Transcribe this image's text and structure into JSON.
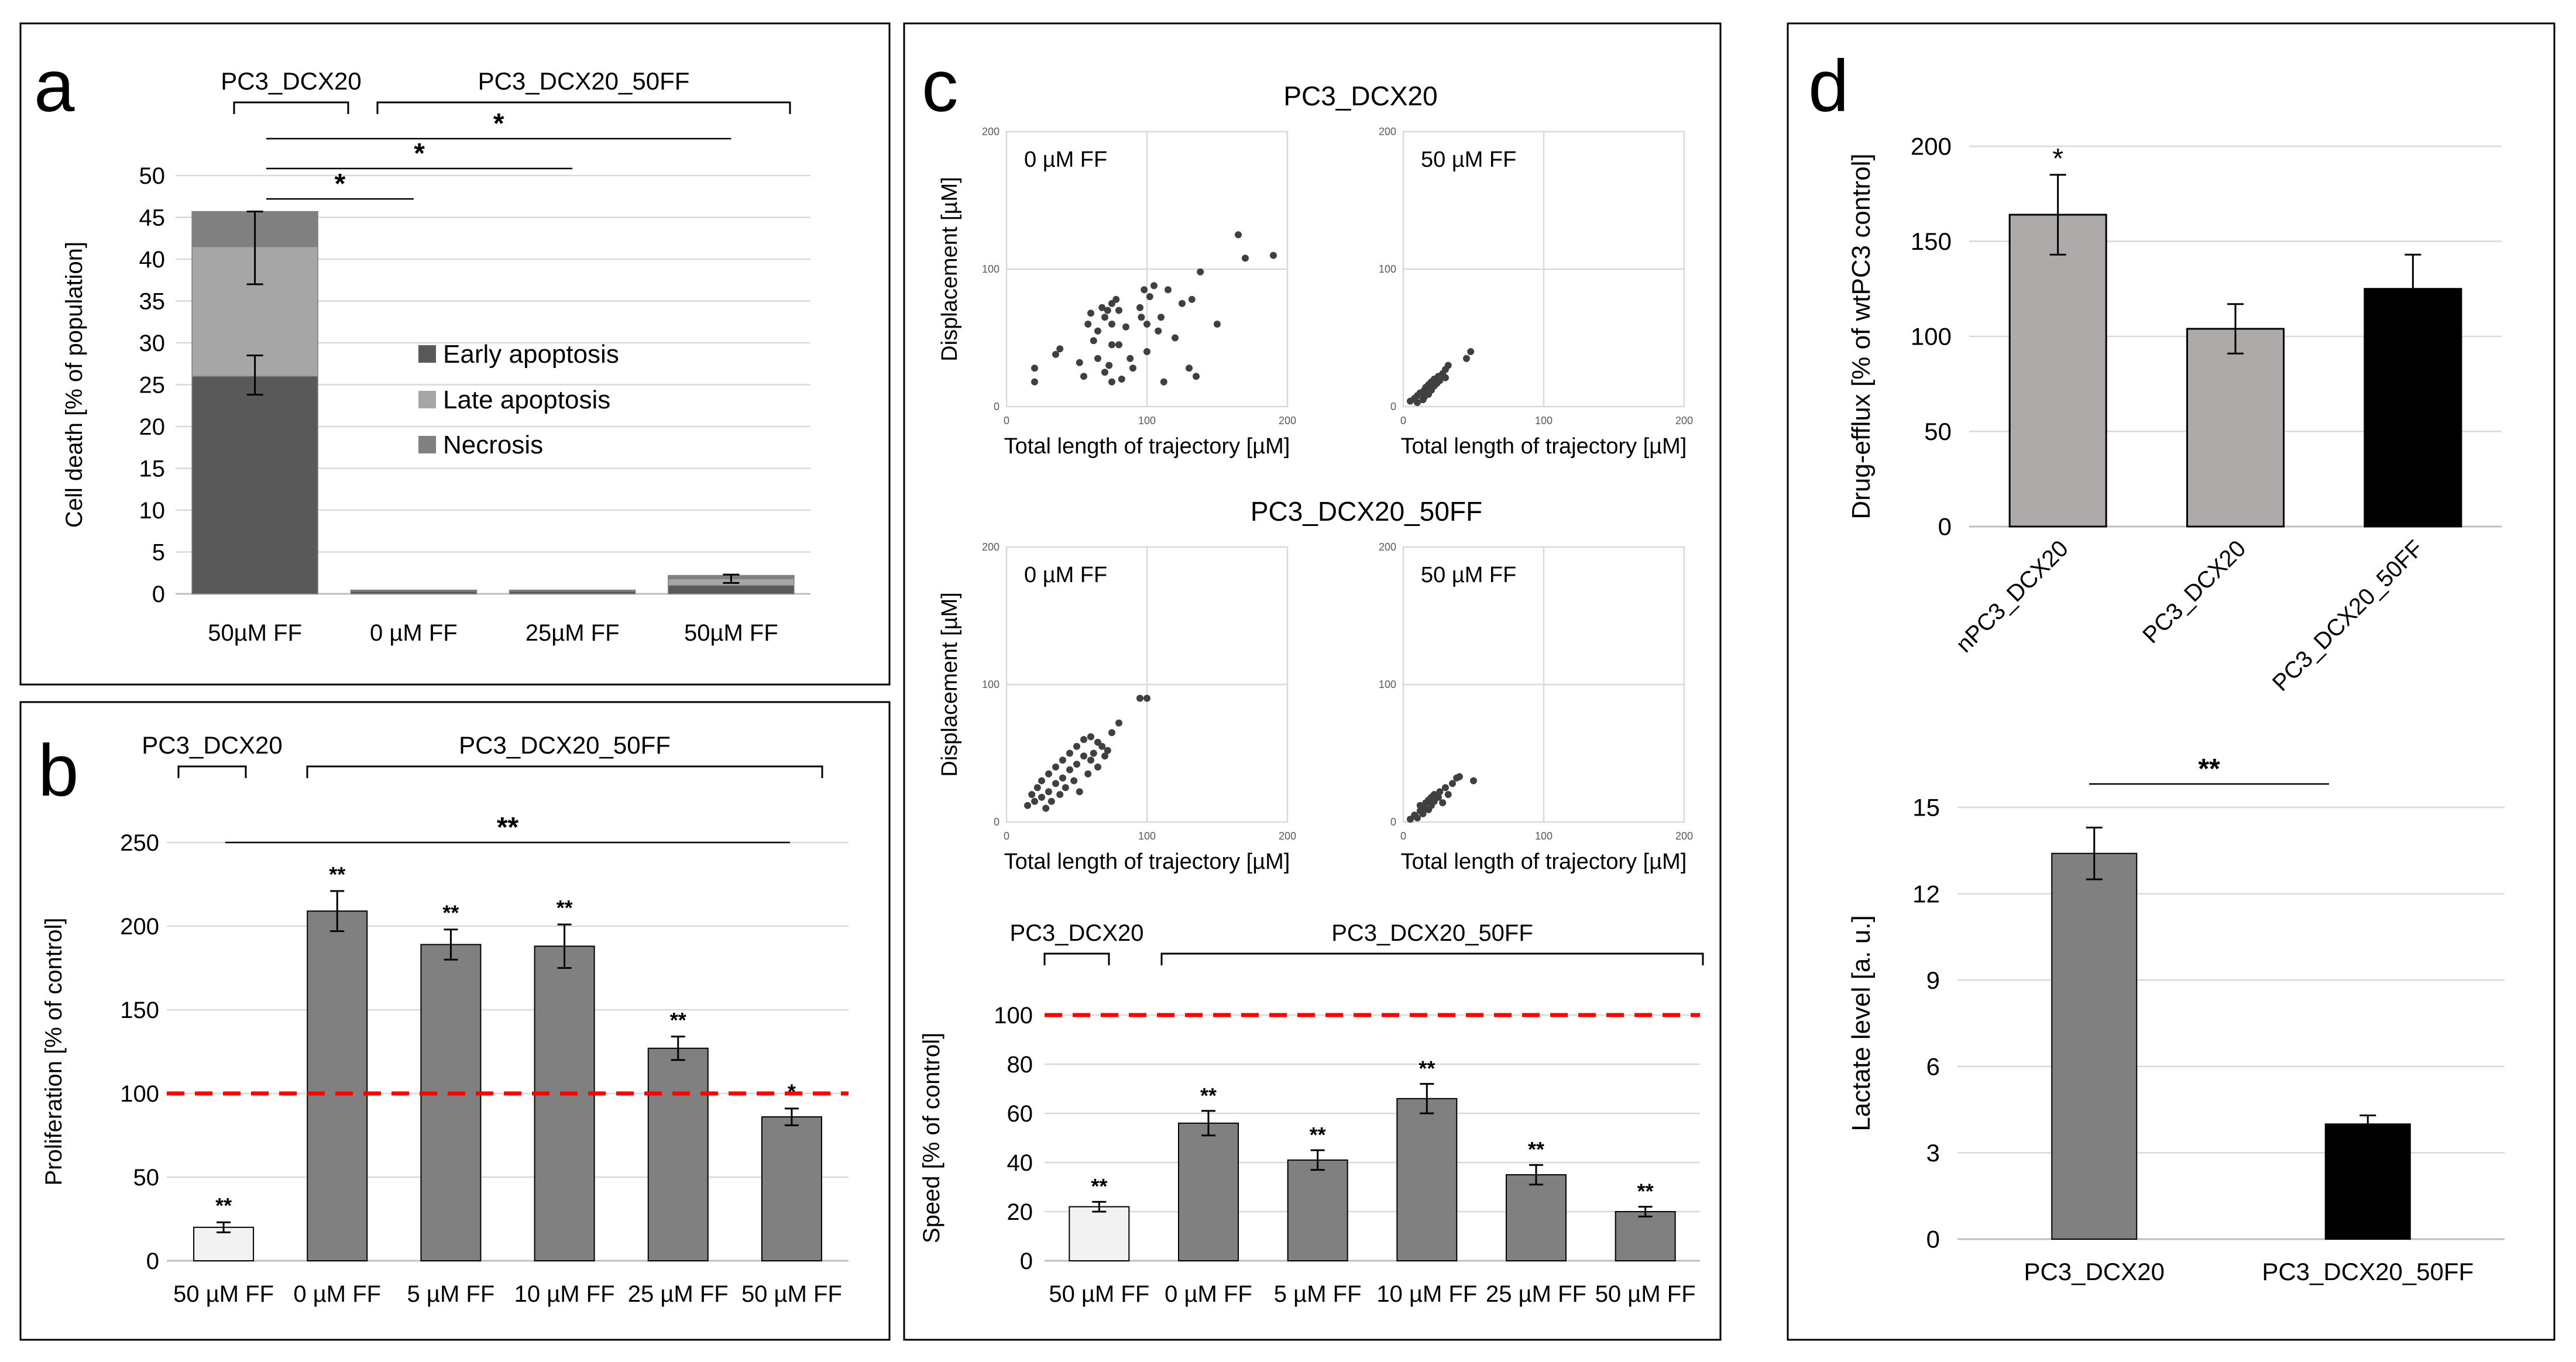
{
  "panel_letters": {
    "a": "a",
    "b": "b",
    "c": "c",
    "d": "d"
  },
  "colors": {
    "dark": "#595959",
    "light": "#a6a6a6",
    "mid": "#808080",
    "bar": "#808080",
    "white_bar": "#f2f2f2",
    "black": "#000000",
    "taupe": "#aeaaaa",
    "red": "#ff0000",
    "grid": "#d9d9d9"
  },
  "chart_data": [
    {
      "id": "a",
      "type": "bar",
      "stacked": true,
      "ylabel": "Cell death [% of population]",
      "ylim": [
        0,
        50
      ],
      "yticks": [
        0,
        5,
        10,
        15,
        20,
        25,
        30,
        35,
        40,
        45,
        50
      ],
      "categories": [
        "50µM FF",
        "0 µM FF",
        "25µM FF",
        "50µM FF"
      ],
      "series": [
        {
          "name": "Early apoptosis",
          "values": [
            26,
            0.3,
            0.3,
            1.0
          ]
        },
        {
          "name": "Late apoptosis",
          "values": [
            15.5,
            0.1,
            0.1,
            0.8
          ]
        },
        {
          "name": "Necrosis",
          "values": [
            4.2,
            0.05,
            0.05,
            0.4
          ]
        }
      ],
      "group_labels": [
        {
          "text": "PC3_DCX20",
          "from": 0,
          "to": 0
        },
        {
          "text": "PC3_DCX20_50FF",
          "from": 1,
          "to": 3
        }
      ],
      "significance": [
        {
          "from": 0,
          "to": 1,
          "label": "*"
        },
        {
          "from": 0,
          "to": 2,
          "label": "*"
        },
        {
          "from": 0,
          "to": 3,
          "label": "*"
        }
      ]
    },
    {
      "id": "b",
      "type": "bar",
      "ylabel": "Proliferation [% of control]",
      "ylim": [
        0,
        250
      ],
      "yticks": [
        0,
        50,
        100,
        150,
        200,
        250
      ],
      "categories": [
        "50 µM FF",
        "0 µM FF",
        "5 µM FF",
        "10 µM FF",
        "25 µM FF",
        "50 µM FF"
      ],
      "values": [
        20,
        209,
        189,
        188,
        127,
        86
      ],
      "errors": [
        3,
        12,
        9,
        13,
        7,
        5
      ],
      "labels": [
        "**",
        "**",
        "**",
        "**",
        "**",
        "*"
      ],
      "reference_line": 100,
      "group_labels": [
        {
          "text": "PC3_DCX20",
          "from": 0,
          "to": 0
        },
        {
          "text": "PC3_DCX20_50FF",
          "from": 1,
          "to": 5
        }
      ],
      "significance": [
        {
          "from": 0,
          "to": 5,
          "label": "**"
        }
      ]
    },
    {
      "id": "c_scatter_1",
      "type": "scatter",
      "subtitle": "PC3_DCX20",
      "annotation": "0 µM FF",
      "xlabel": "Total length of trajectory [µM]",
      "ylabel": "Displacement [µM]",
      "xlim": [
        0,
        200
      ],
      "ylim": [
        0,
        200
      ],
      "xticks": [
        "0",
        "100",
        "200"
      ],
      "yticks": [
        "0",
        "100",
        "200"
      ],
      "x": [
        20,
        20,
        35,
        38,
        52,
        55,
        58,
        60,
        62,
        65,
        65,
        68,
        70,
        70,
        72,
        73,
        75,
        75,
        75,
        75,
        78,
        80,
        80,
        82,
        85,
        88,
        90,
        95,
        96,
        98,
        100,
        100,
        102,
        105,
        108,
        110,
        112,
        115,
        120,
        125,
        130,
        132,
        135,
        138,
        150,
        165,
        170,
        190
      ],
      "y": [
        18,
        28,
        38,
        42,
        32,
        22,
        60,
        68,
        48,
        55,
        35,
        72,
        65,
        25,
        70,
        30,
        45,
        75,
        18,
        60,
        78,
        70,
        45,
        20,
        58,
        35,
        28,
        72,
        65,
        85,
        40,
        60,
        80,
        88,
        55,
        65,
        18,
        85,
        50,
        75,
        28,
        78,
        22,
        98,
        60,
        125,
        108,
        110
      ]
    },
    {
      "id": "c_scatter_2",
      "type": "scatter",
      "annotation": "50 µM FF",
      "xlabel": "Total length of trajectory [µM]",
      "ylabel": "",
      "xlim": [
        0,
        200
      ],
      "ylim": [
        0,
        200
      ],
      "xticks": [
        "0",
        "100",
        "200"
      ],
      "yticks": [
        "0",
        "100",
        "200"
      ],
      "x": [
        5,
        8,
        10,
        10,
        12,
        14,
        15,
        15,
        16,
        18,
        18,
        20,
        20,
        22,
        22,
        24,
        25,
        26,
        28,
        30,
        30,
        32,
        45,
        48
      ],
      "y": [
        4,
        6,
        3,
        8,
        10,
        5,
        12,
        7,
        14,
        9,
        16,
        12,
        18,
        15,
        20,
        17,
        22,
        19,
        24,
        21,
        27,
        30,
        35,
        40
      ]
    },
    {
      "id": "c_scatter_3",
      "type": "scatter",
      "subtitle": "PC3_DCX20_50FF",
      "annotation": "0 µM FF",
      "xlabel": "Total length of trajectory [µM]",
      "ylabel": "Displacement [µM]",
      "xlim": [
        0,
        200
      ],
      "ylim": [
        0,
        200
      ],
      "xticks": [
        "0",
        "100",
        "200"
      ],
      "yticks": [
        "0",
        "100",
        "200"
      ],
      "x": [
        15,
        18,
        20,
        22,
        25,
        25,
        28,
        30,
        30,
        32,
        35,
        35,
        38,
        40,
        40,
        42,
        45,
        45,
        48,
        50,
        50,
        52,
        55,
        55,
        58,
        60,
        60,
        62,
        65,
        65,
        68,
        70,
        72,
        75,
        80,
        95,
        100
      ],
      "y": [
        12,
        20,
        15,
        25,
        18,
        30,
        10,
        22,
        35,
        15,
        28,
        40,
        20,
        32,
        45,
        25,
        38,
        50,
        30,
        42,
        55,
        22,
        48,
        60,
        35,
        45,
        62,
        50,
        40,
        58,
        55,
        48,
        52,
        65,
        72,
        90,
        90
      ]
    },
    {
      "id": "c_scatter_4",
      "type": "scatter",
      "annotation": "50 µM FF",
      "xlabel": "Total length of trajectory [µM]",
      "ylabel": "",
      "xlim": [
        0,
        200
      ],
      "ylim": [
        0,
        200
      ],
      "xticks": [
        "0",
        "100",
        "200"
      ],
      "yticks": [
        "0",
        "100",
        "200"
      ],
      "x": [
        5,
        8,
        10,
        12,
        12,
        14,
        15,
        16,
        18,
        18,
        20,
        20,
        22,
        22,
        25,
        26,
        28,
        30,
        32,
        35,
        38,
        40,
        50
      ],
      "y": [
        2,
        5,
        3,
        8,
        12,
        6,
        10,
        14,
        9,
        16,
        12,
        18,
        15,
        20,
        18,
        22,
        14,
        25,
        20,
        28,
        32,
        33,
        30
      ]
    },
    {
      "id": "c_speed",
      "type": "bar",
      "ylabel": "Speed [% of control]",
      "ylim": [
        0,
        100
      ],
      "yticks": [
        0,
        20,
        40,
        60,
        80,
        100
      ],
      "categories": [
        "50 µM FF",
        "0 µM FF",
        "5 µM FF",
        "10 µM FF",
        "25 µM FF",
        "50 µM FF"
      ],
      "values": [
        22,
        56,
        41,
        66,
        35,
        20
      ],
      "errors": [
        2,
        5,
        4,
        6,
        4,
        2
      ],
      "labels": [
        "**",
        "**",
        "**",
        "**",
        "**",
        "**"
      ],
      "reference_line": 100,
      "group_labels": [
        {
          "text": "PC3_DCX20",
          "from": 0,
          "to": 0
        },
        {
          "text": "PC3_DCX20_50FF",
          "from": 1,
          "to": 5
        }
      ]
    },
    {
      "id": "d_efflux",
      "type": "bar",
      "ylabel": "Drug-efflux [% of wtPC3 control]",
      "ylim": [
        0,
        200
      ],
      "yticks": [
        0,
        50,
        100,
        150,
        200
      ],
      "categories": [
        "nPC3_DCX20",
        "PC3_DCX20",
        "PC3_DCX20_50FF"
      ],
      "values": [
        164,
        104,
        125
      ],
      "errors": [
        21,
        13,
        18
      ],
      "labels": [
        "*",
        "",
        ""
      ]
    },
    {
      "id": "d_lactate",
      "type": "bar",
      "ylabel": "Lactate level [a. u.]",
      "ylim": [
        0,
        15
      ],
      "yticks": [
        0,
        3,
        6,
        9,
        12,
        15
      ],
      "categories": [
        "PC3_DCX20",
        "PC3_DCX20_50FF"
      ],
      "values": [
        13.4,
        4.0
      ],
      "errors": [
        0.9,
        0.3
      ],
      "significance": [
        {
          "from": 0,
          "to": 1,
          "label": "**"
        }
      ]
    }
  ]
}
